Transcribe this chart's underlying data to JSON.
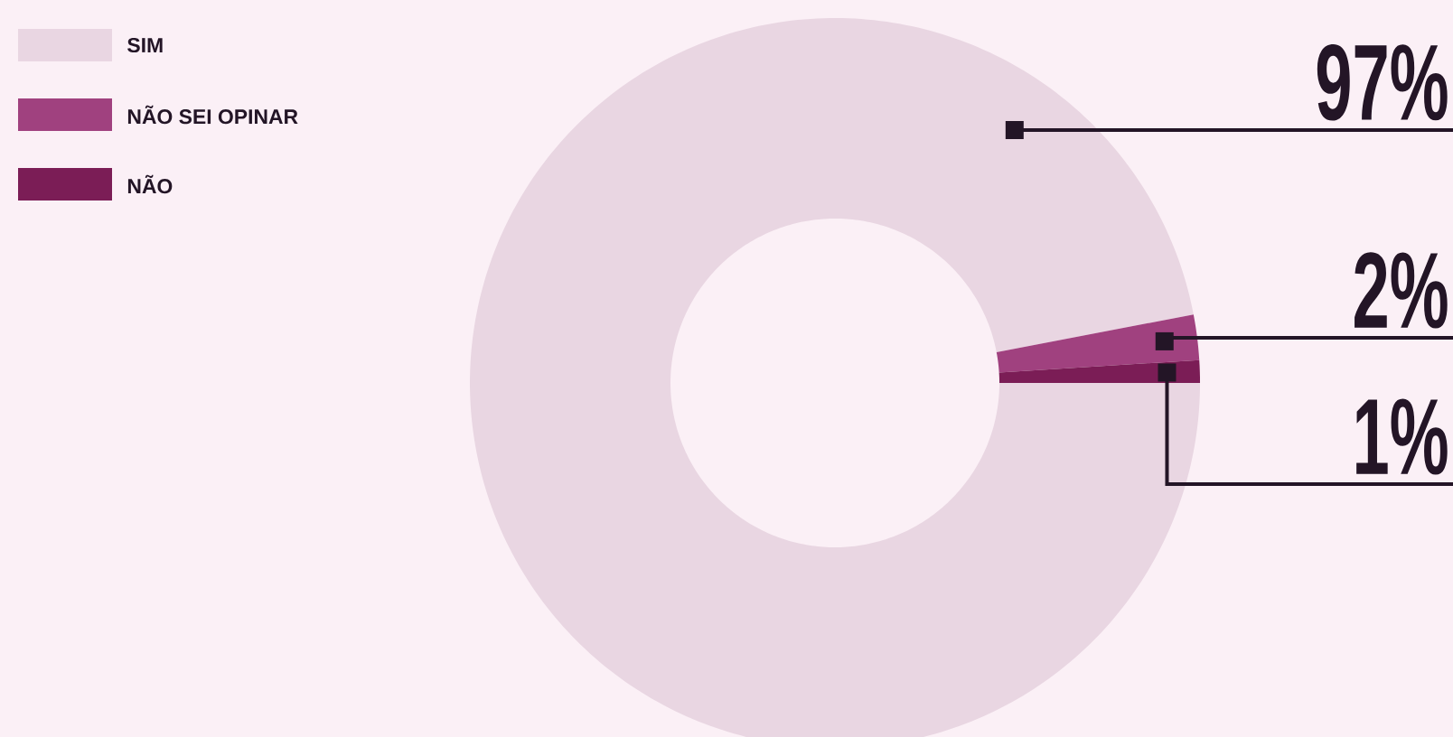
{
  "chart_data": {
    "type": "donut",
    "categories": [
      "SIM",
      "NÃO SEI OPINAR",
      "NÃO"
    ],
    "values": [
      97,
      2,
      1
    ],
    "value_labels": [
      "97%",
      "2%",
      "1%"
    ],
    "colors": [
      "#e9d6e2",
      "#a0417f",
      "#7b1d56"
    ],
    "legend": "top left"
  }
}
